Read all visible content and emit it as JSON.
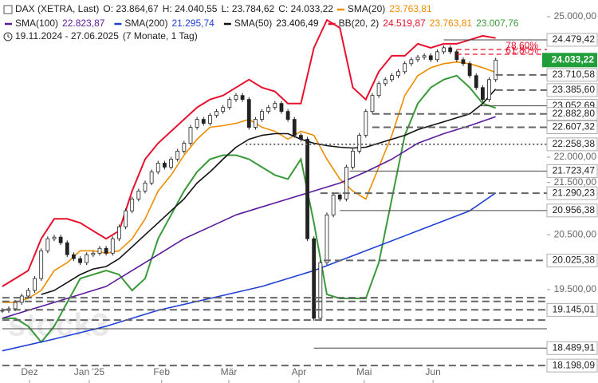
{
  "chart_data": {
    "type": "candlestick",
    "title": "DAX (XETRA, Last)",
    "ohlc_labels": [
      "O: 23.864,67",
      "H: 24.040,55",
      "L: 23.784,62",
      "C: 24.033,22"
    ],
    "period": "19.11.2024 - 27.06.2025",
    "period_note": "(7 Monate, 1 Tag)",
    "watermark": "stock3",
    "log_scale": true,
    "grid": false,
    "xlim": [
      -0.7,
      167.8
    ],
    "ylim": [
      17911,
      25384
    ],
    "yticks": [
      {
        "value": 25000,
        "label": "25.000,00"
      },
      {
        "value": 22000,
        "label": "22.000,00"
      },
      {
        "value": 21500,
        "label": "21.500,00"
      },
      {
        "value": 20500,
        "label": "20.500,00"
      },
      {
        "value": 19500,
        "label": "19.500,00"
      }
    ],
    "xticks": [
      {
        "value": 8.4,
        "label": "Dez"
      },
      {
        "value": 26.8,
        "label": "Jan '25"
      },
      {
        "value": 49.1,
        "label": "Feb"
      },
      {
        "value": 69.8,
        "label": "Mär"
      },
      {
        "value": 91.4,
        "label": "Apr"
      },
      {
        "value": 111.5,
        "label": "Mai"
      },
      {
        "value": 132.7,
        "label": "Jun"
      }
    ],
    "close": {
      "up_color": "#ffffff",
      "down_color": "#222222",
      "last_color": "#1f9e3a",
      "value_label": "24.033,22",
      "x": [
        0,
        2,
        4,
        6,
        8,
        10,
        12,
        14,
        16,
        18,
        20,
        22,
        24,
        26,
        28,
        30,
        32,
        34,
        36,
        38,
        40,
        42,
        44,
        46,
        48,
        50,
        52,
        54,
        56,
        58,
        60,
        62,
        64,
        66,
        68,
        70,
        72,
        74,
        76,
        78,
        80,
        82,
        84,
        86,
        88,
        90,
        92,
        94,
        96,
        98,
        100,
        102,
        104,
        106,
        108,
        110,
        112,
        114,
        116,
        118,
        120,
        122,
        124,
        126,
        128,
        130,
        132,
        134,
        136,
        138,
        140,
        142,
        144,
        146,
        148,
        150,
        152
      ],
      "values": [
        19136,
        19164,
        19275,
        19387,
        19486,
        19698,
        20202,
        20425,
        20455,
        20350,
        20130,
        20058,
        19985,
        20130,
        20158,
        20247,
        20158,
        20425,
        20648,
        20951,
        21178,
        21332,
        21488,
        21707,
        21880,
        21801,
        21959,
        22120,
        22280,
        22606,
        22770,
        22688,
        22852,
        22935,
        23018,
        23186,
        23270,
        23186,
        22606,
        22770,
        22935,
        23018,
        23102,
        22935,
        22770,
        22442,
        22361,
        20425,
        18998,
        19985,
        20873,
        21255,
        21178,
        21801,
        22120,
        22442,
        22935,
        23270,
        23524,
        23609,
        23695,
        23781,
        23955,
        24042,
        24094,
        24128,
        24042,
        24216,
        24303,
        24216,
        24042,
        23955,
        23695,
        23439,
        23186,
        23609,
        24033.22
      ]
    },
    "series": [
      {
        "name": "SMA(20)",
        "color": "#f08c00",
        "value_label": "23.763,81",
        "x": [
          0,
          4,
          8,
          12,
          16,
          20,
          24,
          28,
          32,
          36,
          40,
          44,
          48,
          52,
          56,
          60,
          64,
          68,
          72,
          76,
          80,
          84,
          88,
          92,
          96,
          100,
          104,
          108,
          112,
          116,
          120,
          124,
          128,
          132,
          136,
          140,
          144,
          148,
          152
        ],
        "values": [
          19275,
          19275,
          19345,
          19486,
          19841,
          19985,
          20202,
          20202,
          20158,
          20202,
          20425,
          20798,
          21332,
          21644,
          22039,
          22361,
          22606,
          22639,
          22688,
          22770,
          22606,
          22524,
          22361,
          22524,
          22442,
          21959,
          21566,
          21332,
          21178,
          21801,
          22442,
          23270,
          23695,
          23868,
          23955,
          23990,
          23955,
          23868,
          23763.81
        ]
      },
      {
        "name": "SMA(100)",
        "color": "#5b1a9e",
        "value_label": "22.823,87",
        "x": [
          0,
          8,
          16,
          24,
          32,
          40,
          48,
          56,
          64,
          72,
          80,
          88,
          96,
          104,
          112,
          120,
          128,
          136,
          144,
          152
        ],
        "values": [
          18998,
          19136,
          19275,
          19415,
          19556,
          19841,
          20130,
          20425,
          20648,
          20873,
          21025,
          21178,
          21332,
          21488,
          21707,
          21959,
          22280,
          22475,
          22639,
          22823.87
        ]
      },
      {
        "name": "SMA(200)",
        "color": "#1f3fd6",
        "value_label": "21.295,74",
        "x": [
          0,
          16,
          32,
          48,
          64,
          80,
          96,
          112,
          128,
          144,
          152
        ],
        "values": [
          18443,
          18643,
          18861,
          19136,
          19345,
          19556,
          19841,
          20202,
          20573,
          20951,
          21295.74
        ]
      },
      {
        "name": "SMA(50)",
        "color": "#111111",
        "value_label": "23.406,49",
        "x": [
          0,
          4,
          8,
          12,
          16,
          20,
          24,
          28,
          32,
          36,
          40,
          44,
          48,
          52,
          56,
          60,
          64,
          68,
          72,
          76,
          80,
          84,
          88,
          92,
          96,
          100,
          104,
          108,
          112,
          116,
          120,
          124,
          128,
          132,
          136,
          140,
          144,
          148,
          152
        ],
        "values": [
          null,
          null,
          null,
          19415,
          19486,
          19627,
          19769,
          19870,
          19914,
          20058,
          20276,
          20499,
          20723,
          20951,
          21178,
          21488,
          21707,
          21959,
          22200,
          22361,
          22442,
          22475,
          22475,
          22361,
          22280,
          22232,
          22200,
          22184,
          22200,
          22280,
          22361,
          22442,
          22557,
          22639,
          22721,
          22803,
          22885,
          23102,
          23406.49
        ]
      }
    ],
    "bollinger": {
      "name": "BB(20, 2)",
      "value_labels": [
        "24.519,87",
        "23.763,81",
        "23.007,76"
      ],
      "colors": [
        "#e8112d",
        "#f08c00",
        "#3a9a3a"
      ],
      "x": [
        0,
        4,
        8,
        12,
        16,
        20,
        24,
        28,
        32,
        36,
        40,
        44,
        48,
        52,
        56,
        60,
        64,
        68,
        72,
        76,
        80,
        84,
        88,
        92,
        96,
        100,
        104,
        108,
        112,
        116,
        120,
        124,
        128,
        132,
        136,
        140,
        144,
        148,
        152
      ],
      "upper": [
        19556,
        19698,
        19841,
        20425,
        20798,
        20798,
        20723,
        20573,
        20425,
        20573,
        21332,
        21959,
        22280,
        22524,
        22770,
        23018,
        23186,
        23270,
        23439,
        23609,
        23439,
        23354,
        23102,
        23102,
        24303,
        24928,
        24748,
        23439,
        23186,
        23781,
        24128,
        24128,
        24391,
        24303,
        24391,
        24391,
        24480,
        24569,
        24519.87
      ],
      "lower": [
        18998,
        18998,
        18861,
        18590,
        18861,
        19275,
        19698,
        19769,
        19841,
        19769,
        19486,
        19698,
        20425,
        20873,
        21332,
        21707,
        21959,
        22039,
        22039,
        21959,
        21801,
        21644,
        21566,
        21959,
        20723,
        19415,
        19345,
        19345,
        19345,
        19985,
        21178,
        22442,
        23102,
        23439,
        23609,
        23695,
        23439,
        23102,
        23007.76
      ]
    },
    "fibonacci": [
      {
        "label": "78.60%",
        "value": 24266,
        "x": 140
      },
      {
        "label": "61.80%",
        "value": 24160,
        "x": 140
      }
    ],
    "levels": [
      {
        "value": 24479.42,
        "label": "24.479,42",
        "style": "solid",
        "x": 136
      },
      {
        "value": 23710.58,
        "label": "23.710,58",
        "style": "dashed",
        "x": 152
      },
      {
        "value": 23385.6,
        "label": "23.385,60",
        "style": "dashed",
        "x": 152
      },
      {
        "value": 23052.69,
        "label": "23.052,69",
        "style": "solid",
        "x": 147
      },
      {
        "value": 22882.8,
        "label": "22.882,80",
        "style": "dashed",
        "x": 114
      },
      {
        "value": 22607.32,
        "label": "22.607,32",
        "style": "dashed",
        "x": 114
      },
      {
        "value": 22258.38,
        "label": "22.258,38",
        "style": "dotted",
        "x": 75
      },
      {
        "value": 21723.47,
        "label": "21.723,47",
        "style": "solid",
        "x": 107
      },
      {
        "value": 21290.23,
        "label": "21.290,23",
        "style": "dashed",
        "x": 98
      },
      {
        "value": 20956.38,
        "label": "20.956,38",
        "style": "solid",
        "x": 104
      },
      {
        "value": 20025.38,
        "label": "20.025,38",
        "style": "dashed",
        "x": 99
      },
      {
        "value": 19357,
        "style": "dashed",
        "x": 0
      },
      {
        "value": 19292,
        "style": "dashed",
        "x": 0
      },
      {
        "value": 19145.01,
        "label": "19.145,01",
        "style": "dashed",
        "x": 0
      },
      {
        "value": 18967,
        "style": "dashed",
        "x": 0
      },
      {
        "value": 18818,
        "style": "solid",
        "x": 0
      },
      {
        "value": 18489.91,
        "label": "18.489,91",
        "style": "solid",
        "x": 96
      },
      {
        "value": 18198.09,
        "label": "18.198,09",
        "style": "dashed",
        "x": 0
      }
    ]
  }
}
